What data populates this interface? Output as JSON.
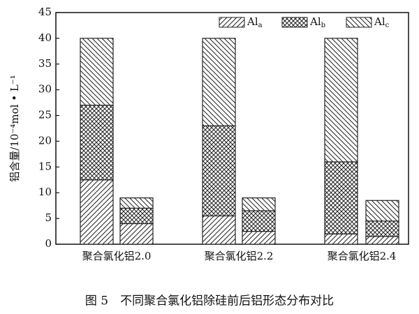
{
  "chart_data": {
    "type": "stacked-bar",
    "y_label": "铝含量/10⁻⁴mol • L⁻¹",
    "caption": "图 5　不同聚合氯化铝除硅前后铝形态分布对比",
    "categories": [
      "聚合氯化铝2.0",
      null,
      "聚合氯化铝2.2",
      null,
      "聚合氯化铝2.4",
      null
    ],
    "series": [
      {
        "name": "Al",
        "subscript": "a",
        "color": "#222222",
        "pattern": "forward-hatch",
        "values": [
          12.5,
          4,
          5.5,
          2.5,
          2,
          1.5
        ]
      },
      {
        "name": "Al",
        "subscript": "b",
        "color": "#222222",
        "pattern": "cross-hatch",
        "values": [
          14.5,
          3,
          17.5,
          4,
          14,
          3
        ]
      },
      {
        "name": "Al",
        "subscript": "c",
        "color": "#222222",
        "pattern": "back-hatch",
        "values": [
          13,
          2,
          17,
          2.5,
          24,
          4
        ]
      }
    ],
    "ylim": [
      0,
      45
    ],
    "yticks": [
      0,
      5,
      10,
      15,
      20,
      25,
      30,
      35,
      40,
      45
    ],
    "legend": "top-right"
  }
}
